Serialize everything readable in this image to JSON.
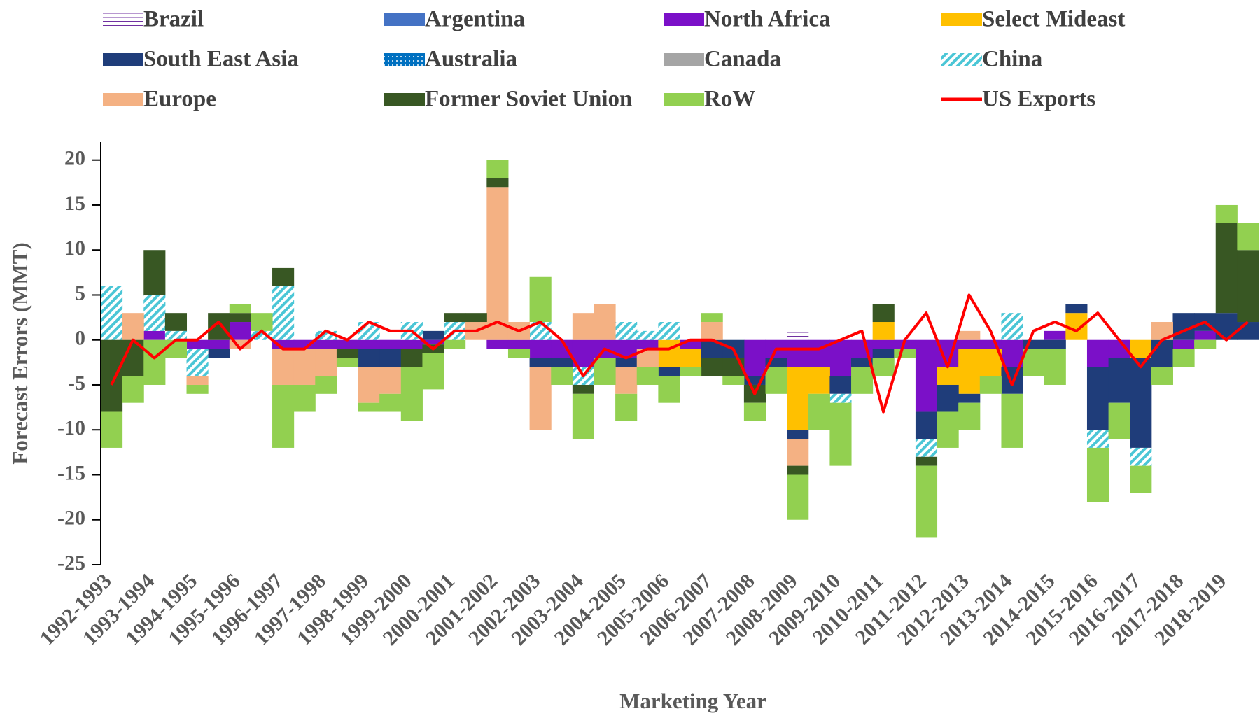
{
  "chart_data": {
    "type": "bar",
    "x_label": "Marketing Year",
    "y_label": "Forecast Errors (MMT)",
    "categories": [
      "1992-1993",
      null,
      "1993-1994",
      null,
      "1994-1995",
      null,
      "1995-1996",
      null,
      "1996-1997",
      null,
      "1997-1998",
      null,
      "1998-1999",
      null,
      "1999-2000",
      null,
      "2000-2001",
      null,
      "2001-2002",
      null,
      "2002-2003",
      null,
      "2003-2004",
      null,
      "2004-2005",
      null,
      "2005-2006",
      null,
      "2006-2007",
      null,
      "2007-2008",
      null,
      "2008-2009",
      null,
      "2009-2010",
      null,
      "2010-2011",
      null,
      "2011-2012",
      null,
      "2012-2013",
      null,
      "2013-2014",
      null,
      "2014-2015",
      null,
      "2015-2016",
      null,
      "2016-2017",
      null,
      "2017-2018",
      null,
      "2018-2019",
      null
    ],
    "ylim": [
      -25,
      22
    ],
    "yticks": [
      -25,
      -20,
      -15,
      -10,
      -5,
      0,
      5,
      10,
      15,
      20
    ],
    "series": [
      {
        "name": "Brazil",
        "color": "#7030a0",
        "pattern": "lines",
        "values": [
          0,
          0,
          0,
          0,
          0,
          0,
          0,
          0,
          0,
          0,
          0,
          0,
          0,
          0,
          0,
          0,
          0,
          0,
          0,
          0,
          0,
          0,
          0,
          0,
          0,
          0,
          0,
          0,
          0,
          0,
          0,
          0,
          1,
          0,
          0,
          0,
          0,
          0,
          0,
          0,
          0,
          0,
          0,
          0,
          0,
          0,
          0,
          0,
          0,
          0,
          0,
          0,
          0,
          0
        ]
      },
      {
        "name": "Argentina",
        "color": "#4472c4",
        "values": [
          0,
          0,
          0,
          0,
          0,
          0,
          0,
          0,
          0,
          0,
          0,
          0,
          0,
          0,
          0,
          0,
          0,
          0,
          0,
          0,
          0,
          0,
          0,
          0,
          0,
          0,
          0,
          0,
          0,
          0,
          0,
          0,
          0,
          0,
          0,
          0,
          0,
          0,
          0,
          0,
          0,
          0,
          0,
          0,
          0,
          0,
          0,
          0,
          0,
          0,
          0,
          0,
          0,
          0
        ]
      },
      {
        "name": "North Africa",
        "color": "#7b10c8",
        "values": [
          0,
          0,
          1,
          0,
          -1,
          -1,
          2,
          0,
          -1,
          -1,
          -1,
          -1,
          -1,
          -1,
          -1,
          -0.5,
          0,
          0,
          -1,
          -1,
          -2,
          -2,
          -3,
          -2,
          -2,
          -1,
          0,
          -1,
          0,
          0,
          -4,
          -2,
          -3,
          -3,
          -4,
          -2,
          -1,
          -1,
          -8,
          -3,
          -1,
          -1,
          -3,
          0,
          1,
          0,
          -3,
          -2,
          0,
          0,
          -1,
          1,
          0,
          0
        ]
      },
      {
        "name": "Select Mideast",
        "color": "#ffc000",
        "values": [
          0,
          0,
          0,
          0,
          0,
          0,
          0,
          0,
          0,
          0,
          0,
          0,
          0,
          0,
          0,
          0,
          0,
          0,
          0,
          0,
          0,
          0,
          0,
          0,
          0,
          0,
          -3,
          -2,
          0,
          0,
          0,
          0,
          -7,
          -3,
          0,
          0,
          2,
          0,
          0,
          -2,
          -5,
          -3,
          0,
          0,
          0,
          3,
          0,
          0,
          -2,
          0,
          0,
          0,
          0,
          0
        ]
      },
      {
        "name": "South East Asia",
        "color": "#1f3d7a",
        "values": [
          0,
          0,
          0,
          0,
          0,
          -1,
          0,
          0,
          0,
          0,
          0,
          0,
          -2,
          -2,
          0,
          1,
          0,
          0,
          0,
          0,
          -1,
          -1,
          0,
          0,
          -1,
          0,
          -1,
          0,
          -2,
          -2,
          -1,
          -1,
          -1,
          0,
          -2,
          -1,
          -1,
          0,
          -3,
          -3,
          -1,
          0,
          -3,
          -1,
          -1,
          1,
          -7,
          -5,
          -10,
          -3,
          3,
          2,
          3,
          2
        ]
      },
      {
        "name": "Australia",
        "color": "#0070c0",
        "pattern": "dots",
        "values": [
          0,
          0,
          0,
          0,
          0,
          0,
          0,
          0,
          0,
          0,
          0,
          0,
          0,
          0,
          0,
          0,
          0,
          0,
          0,
          0,
          0,
          0,
          0,
          0,
          0,
          0,
          0,
          0,
          0,
          0,
          0,
          0,
          0,
          0,
          0,
          0,
          0,
          0,
          0,
          0,
          0,
          0,
          0,
          0,
          0,
          0,
          0,
          0,
          0,
          0,
          0,
          0,
          0,
          0
        ]
      },
      {
        "name": "Canada",
        "color": "#a5a5a5",
        "values": [
          0,
          0,
          0,
          0,
          0,
          0,
          0,
          0,
          0,
          0,
          0,
          0,
          0,
          0,
          0,
          0,
          0,
          0,
          0,
          0,
          0,
          0,
          0,
          0,
          0,
          0,
          0,
          0,
          0,
          0,
          0,
          0,
          0,
          0,
          0,
          0,
          0,
          0,
          0,
          0,
          0,
          0,
          0,
          0,
          0,
          0,
          0,
          0,
          0,
          0,
          0,
          0,
          0,
          0
        ]
      },
      {
        "name": "China",
        "color": "#4bc6d6",
        "pattern": "diagonal",
        "values": [
          6,
          0,
          4,
          1,
          -3,
          0,
          0,
          1,
          6,
          0,
          1,
          0,
          2,
          0,
          2,
          0,
          2,
          0,
          0,
          0,
          2,
          0,
          -2,
          0,
          2,
          1,
          2,
          0,
          0,
          0,
          0,
          0,
          0,
          0,
          -1,
          0,
          0,
          0,
          -2,
          0,
          0,
          0,
          3,
          0,
          0,
          0,
          -2,
          0,
          -2,
          0,
          0,
          0,
          0,
          0
        ]
      },
      {
        "name": "Europe",
        "color": "#f4b183",
        "values": [
          0,
          3,
          0,
          0,
          -1,
          0,
          -1,
          0,
          -4,
          -4,
          -3,
          0,
          -4,
          -3,
          0,
          0,
          0,
          2,
          17,
          2,
          -7,
          0,
          3,
          4,
          -3,
          -2,
          0,
          0,
          2,
          0,
          0,
          0,
          -3,
          0,
          0,
          0,
          0,
          0,
          0,
          0,
          1,
          0,
          0,
          0,
          0,
          0,
          0,
          0,
          0,
          2,
          0,
          0,
          0,
          0
        ]
      },
      {
        "name": "Former Soviet Union",
        "color": "#385723",
        "values": [
          -8,
          -4,
          5,
          2,
          0,
          3,
          1,
          0,
          2,
          0,
          0,
          -1,
          0,
          0,
          -2,
          -1,
          1,
          1,
          1,
          0,
          0,
          0,
          -1,
          0,
          0,
          0,
          0,
          0,
          -2,
          -2,
          -2,
          0,
          -1,
          0,
          0,
          0,
          2,
          0,
          -1,
          0,
          0,
          0,
          0,
          0,
          0,
          0,
          0,
          0,
          0,
          0,
          0,
          0,
          10,
          8
        ]
      },
      {
        "name": "RoW",
        "color": "#92d050",
        "values": [
          -4,
          -3,
          -5,
          -2,
          -1,
          0,
          1,
          2,
          -7,
          -3,
          -2,
          -1,
          -1,
          -2,
          -6,
          -4,
          -1,
          0,
          2,
          -1,
          5,
          -2,
          -5,
          -3,
          -3,
          -2,
          -3,
          -1,
          1,
          -1,
          -2,
          -3,
          -5,
          -4,
          -7,
          -3,
          -2,
          -1,
          -8,
          -4,
          -3,
          -2,
          -6,
          -3,
          -4,
          0,
          -6,
          -4,
          -3,
          -2,
          -2,
          -1,
          2,
          3
        ]
      },
      {
        "name": "US Exports",
        "color": "#ff0000",
        "type": "line",
        "values": [
          -5,
          0,
          -2,
          0,
          0,
          2,
          -1,
          1,
          -1,
          -1,
          1,
          0,
          2,
          1,
          1,
          -1,
          1,
          1,
          2,
          1,
          2,
          0,
          -4,
          -1,
          -2,
          -1,
          -1,
          0,
          0,
          -1,
          -6,
          -1,
          -1,
          -1,
          0,
          1,
          -8,
          0,
          3,
          -3,
          5,
          1,
          -5,
          1,
          2,
          1,
          3,
          0,
          -3,
          0,
          1,
          2,
          0,
          2
        ]
      }
    ]
  }
}
